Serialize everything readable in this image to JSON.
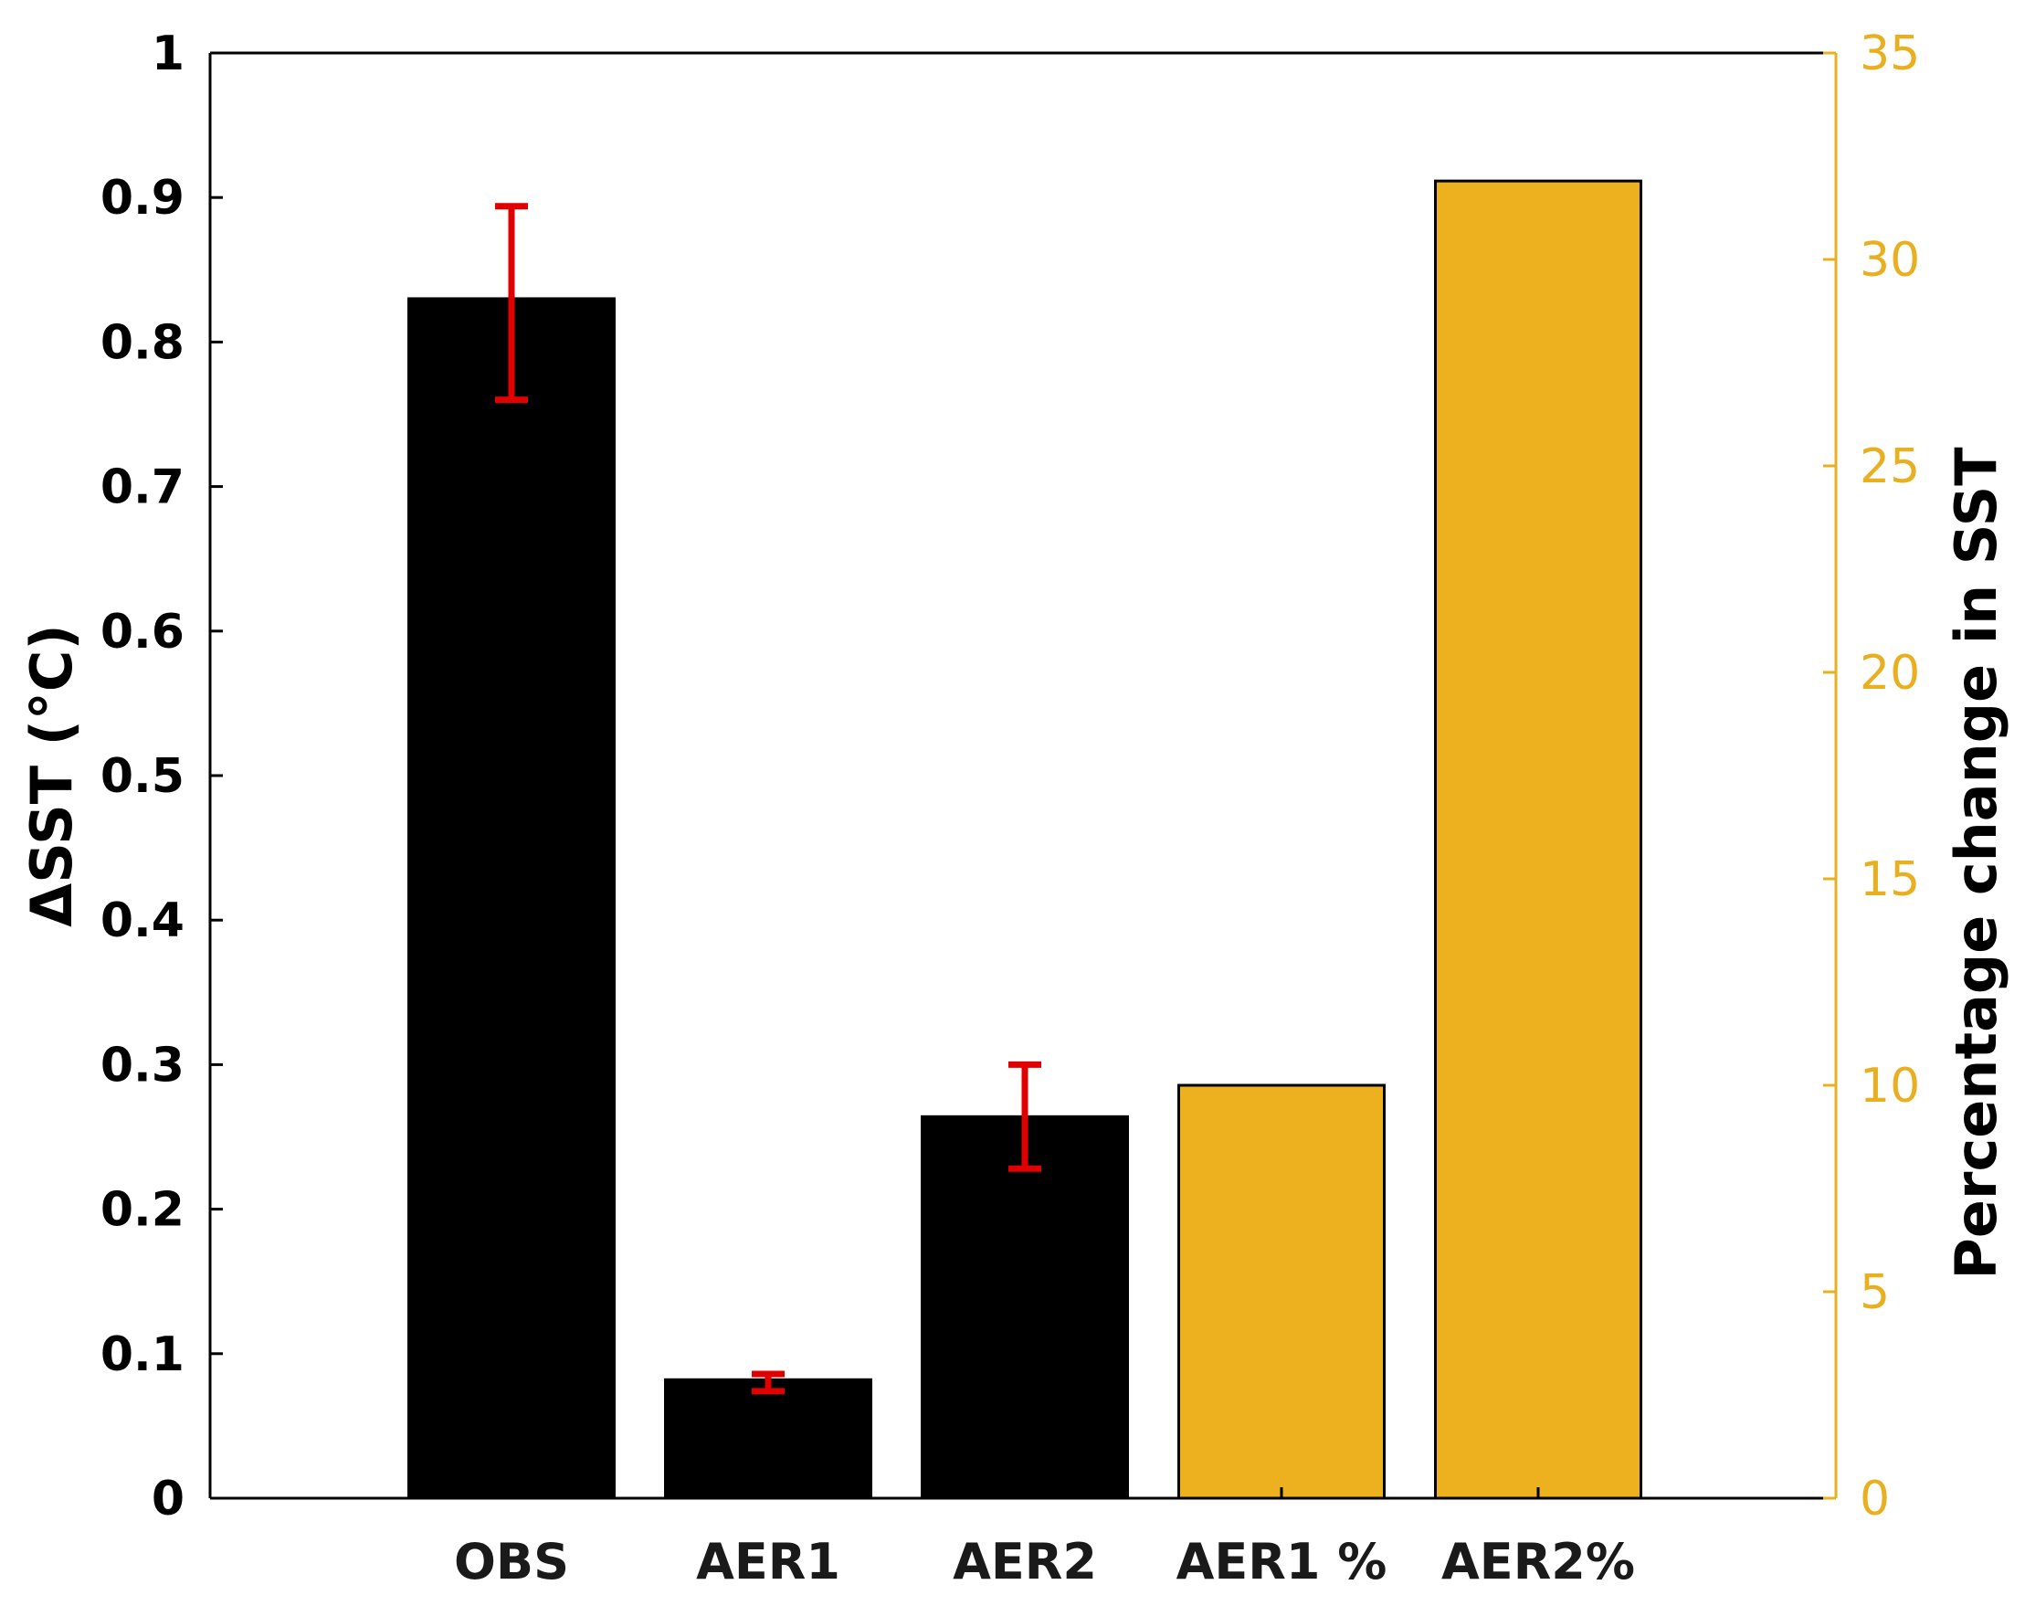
{
  "chart_data": {
    "type": "bar",
    "categories": [
      "OBS",
      "AER1",
      "AER2",
      "AER1 %",
      "AER2%"
    ],
    "left_axis": {
      "label": "ΔSST (°C)",
      "ylim": [
        0,
        1
      ],
      "ticks": [
        "0",
        "0.1",
        "0.2",
        "0.3",
        "0.4",
        "0.5",
        "0.6",
        "0.7",
        "0.8",
        "0.9",
        "1"
      ]
    },
    "right_axis": {
      "label": "Percentage change in SST",
      "ylim": [
        0,
        35
      ],
      "ticks": [
        "0",
        "5",
        "10",
        "15",
        "20",
        "25",
        "30",
        "35"
      ],
      "color": "#E8B020"
    },
    "series": [
      {
        "axis": "left",
        "color": "#000000",
        "points": [
          {
            "category": "OBS",
            "value": 0.83,
            "err_low": 0.76,
            "err_high": 0.894
          },
          {
            "category": "AER1",
            "value": 0.082,
            "err_low": 0.074,
            "err_high": 0.086
          },
          {
            "category": "AER2",
            "value": 0.264,
            "err_low": 0.228,
            "err_high": 0.3
          }
        ]
      },
      {
        "axis": "right",
        "color": "#EDB120",
        "points": [
          {
            "category": "AER1 %",
            "value": 10.0
          },
          {
            "category": "AER2%",
            "value": 31.9
          }
        ]
      }
    ],
    "error_bar_color": "#E00000",
    "grid": false,
    "legend": "none"
  }
}
